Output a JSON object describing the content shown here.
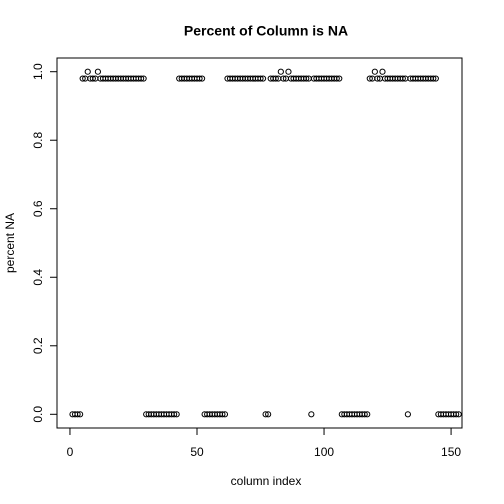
{
  "chart_data": {
    "type": "scatter",
    "title": "Percent of Column is NA",
    "xlabel": "column index",
    "ylabel": "percent NA",
    "x": [
      1,
      2,
      3,
      4,
      5,
      6,
      7,
      8,
      9,
      10,
      11,
      12,
      13,
      14,
      15,
      16,
      17,
      18,
      19,
      20,
      21,
      22,
      23,
      24,
      25,
      26,
      27,
      28,
      29,
      30,
      31,
      32,
      33,
      34,
      35,
      36,
      37,
      38,
      39,
      40,
      41,
      42,
      43,
      44,
      45,
      46,
      47,
      48,
      49,
      50,
      51,
      52,
      53,
      54,
      55,
      56,
      57,
      58,
      59,
      60,
      61,
      62,
      63,
      64,
      65,
      66,
      67,
      68,
      69,
      70,
      71,
      72,
      73,
      74,
      75,
      76,
      77,
      78,
      79,
      80,
      81,
      82,
      83,
      84,
      85,
      86,
      87,
      88,
      89,
      90,
      91,
      92,
      93,
      94,
      95,
      96,
      97,
      98,
      99,
      100,
      101,
      102,
      103,
      104,
      105,
      106,
      107,
      108,
      109,
      110,
      111,
      112,
      113,
      114,
      115,
      116,
      117,
      118,
      119,
      120,
      121,
      122,
      123,
      124,
      125,
      126,
      127,
      128,
      129,
      130,
      131,
      132,
      133,
      134,
      135,
      136,
      137,
      138,
      139,
      140,
      141,
      142,
      143,
      144,
      145,
      146,
      147,
      148,
      149,
      150,
      151,
      152,
      153
    ],
    "values": [
      0,
      0,
      0,
      0,
      0.98,
      0.98,
      1,
      0.98,
      0.98,
      0.98,
      1,
      0.98,
      0.98,
      0.98,
      0.98,
      0.98,
      0.98,
      0.98,
      0.98,
      0.98,
      0.98,
      0.98,
      0.98,
      0.98,
      0.98,
      0.98,
      0.98,
      0.98,
      0.98,
      0,
      0,
      0,
      0,
      0,
      0,
      0,
      0,
      0,
      0,
      0,
      0,
      0,
      0.98,
      0.98,
      0.98,
      0.98,
      0.98,
      0.98,
      0.98,
      0.98,
      0.98,
      0.98,
      0,
      0,
      0,
      0,
      0,
      0,
      0,
      0,
      0,
      0.98,
      0.98,
      0.98,
      0.98,
      0.98,
      0.98,
      0.98,
      0.98,
      0.98,
      0.98,
      0.98,
      0.98,
      0.98,
      0.98,
      0.98,
      0,
      0,
      0.98,
      0.98,
      0.98,
      0.98,
      1,
      0.98,
      0.98,
      1,
      0.98,
      0.98,
      0.98,
      0.98,
      0.98,
      0.98,
      0.98,
      0.98,
      0,
      0.98,
      0.98,
      0.98,
      0.98,
      0.98,
      0.98,
      0.98,
      0.98,
      0.98,
      0.98,
      0.98,
      0,
      0,
      0,
      0,
      0,
      0,
      0,
      0,
      0,
      0,
      0,
      0.98,
      0.98,
      1,
      0.98,
      0.98,
      1,
      0.98,
      0.98,
      0.98,
      0.98,
      0.98,
      0.98,
      0.98,
      0.98,
      0.98,
      0,
      0.98,
      0.98,
      0.98,
      0.98,
      0.98,
      0.98,
      0.98,
      0.98,
      0.98,
      0.98,
      0.98,
      0,
      0,
      0,
      0,
      0,
      0,
      0,
      0,
      0
    ],
    "color": "#000000",
    "xlim": [
      -5.1,
      154.3
    ],
    "xticks": [
      0,
      50,
      100,
      150
    ],
    "ylim": [
      -0.04,
      1.04
    ],
    "yticks": [
      {
        "value": 0,
        "label": "0.0"
      },
      0.2,
      0.4,
      0.6,
      0.8,
      {
        "value": 1,
        "label": "1.0"
      }
    ],
    "grid": false
  }
}
